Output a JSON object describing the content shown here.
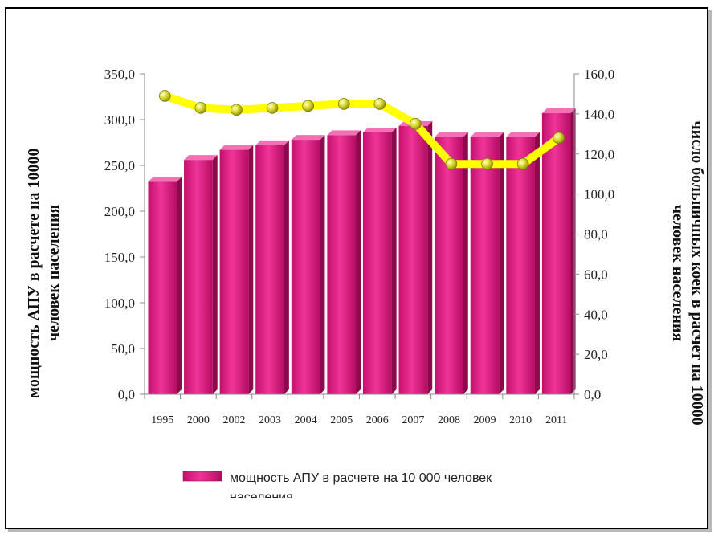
{
  "chart_data": {
    "type": "bar+line",
    "categories": [
      "1995",
      "2000",
      "2002",
      "2003",
      "2004",
      "2005",
      "2006",
      "2007",
      "2008",
      "2009",
      "2010",
      "2011"
    ],
    "bar_series": {
      "name": "мощность АПУ в расчете на 10 000 человек населения",
      "values": [
        232,
        256,
        267,
        272,
        278,
        283,
        286,
        293,
        281,
        281,
        281,
        307
      ],
      "color": "#e8208a"
    },
    "line_series": {
      "values": [
        149,
        143,
        142,
        143,
        144,
        145,
        145,
        135,
        115,
        115,
        115,
        128
      ],
      "color": "#ffff00",
      "marker_color": "#d6d61e"
    },
    "y_left": {
      "label_lines": [
        "мощность АПУ в  расчете на 10000",
        "человек населения"
      ],
      "range": [
        0,
        350
      ],
      "ticks": [
        "0,0",
        "50,0",
        "100,0",
        "150,0",
        "200,0",
        "250,0",
        "300,0",
        "350,0"
      ]
    },
    "y_right": {
      "label_lines": [
        "число больничных коек в расчет на 10000",
        "человек населения"
      ],
      "range": [
        0,
        160
      ],
      "ticks": [
        "0,0",
        "20,0",
        "40,0",
        "60,0",
        "80,0",
        "100,0",
        "120,0",
        "140,0",
        "160,0"
      ]
    },
    "legend": {
      "position": "bottom",
      "text_lines": [
        "мощность АПУ в расчете на 10 000 человек",
        "населения"
      ]
    }
  }
}
